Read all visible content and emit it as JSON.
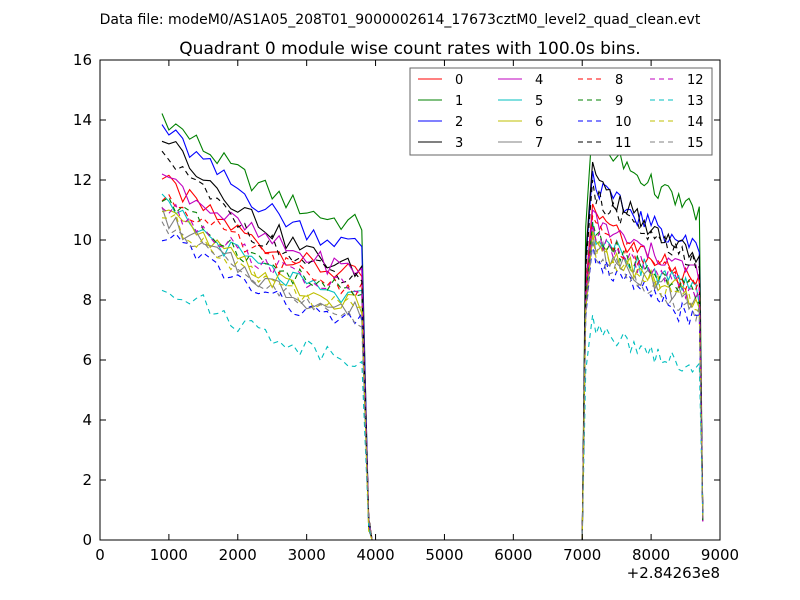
{
  "chart_data": {
    "type": "line",
    "suptitle": "Data file: modeM0/AS1A05_208T01_9000002614_17673cztM0_level2_quad_clean.evt",
    "title": "Quadrant 0 module wise count rates with 100.0s bins.",
    "xlabel": "",
    "ylabel": "",
    "x_offset_label": "+2.84263e8",
    "xlim": [
      0,
      9000
    ],
    "ylim": [
      0,
      16
    ],
    "x_ticks": [
      0,
      1000,
      2000,
      3000,
      4000,
      5000,
      6000,
      7000,
      8000,
      9000
    ],
    "y_ticks": [
      0,
      2,
      4,
      6,
      8,
      10,
      12,
      14,
      16
    ],
    "legend_position": "top-right",
    "legend_columns": 4,
    "segments": [
      {
        "start": 900,
        "end": 3850,
        "step": 100,
        "edge": 3900,
        "edge2": 3950
      },
      {
        "start": 7050,
        "end": 8700,
        "step": 50,
        "edge": 7000,
        "edge2": 8750
      }
    ],
    "series": [
      {
        "name": "0",
        "color": "#ff0000",
        "dash": "solid",
        "start1": 12.0,
        "end1": 8.8,
        "start2": 11.2,
        "end2": 8.6
      },
      {
        "name": "1",
        "color": "#008000",
        "dash": "solid",
        "start1": 14.2,
        "end1": 10.5,
        "start2": 13.9,
        "end2": 10.9
      },
      {
        "name": "2",
        "color": "#0000ff",
        "dash": "solid",
        "start1": 13.8,
        "end1": 9.8,
        "start2": 12.3,
        "end2": 9.7
      },
      {
        "name": "3",
        "color": "#000000",
        "dash": "solid",
        "start1": 13.6,
        "end1": 9.0,
        "start2": 12.6,
        "end2": 9.4
      },
      {
        "name": "4",
        "color": "#bf00bf",
        "dash": "solid",
        "start1": 12.2,
        "end1": 9.0,
        "start2": 11.0,
        "end2": 8.9
      },
      {
        "name": "5",
        "color": "#00bfbf",
        "dash": "solid",
        "start1": 11.2,
        "end1": 8.0,
        "start2": 10.6,
        "end2": 8.2
      },
      {
        "name": "6",
        "color": "#bfbf00",
        "dash": "solid",
        "start1": 11.0,
        "end1": 7.8,
        "start2": 10.3,
        "end2": 8.0
      },
      {
        "name": "7",
        "color": "#808080",
        "dash": "solid",
        "start1": 10.8,
        "end1": 7.6,
        "start2": 10.2,
        "end2": 7.9
      },
      {
        "name": "8",
        "color": "#ff0000",
        "dash": "dashed",
        "start1": 11.6,
        "end1": 8.4,
        "start2": 10.8,
        "end2": 8.4
      },
      {
        "name": "9",
        "color": "#008000",
        "dash": "dashed",
        "start1": 11.4,
        "end1": 8.2,
        "start2": 10.6,
        "end2": 8.2
      },
      {
        "name": "10",
        "color": "#0000ff",
        "dash": "dashed",
        "start1": 10.3,
        "end1": 7.2,
        "start2": 9.9,
        "end2": 7.3
      },
      {
        "name": "11",
        "color": "#000000",
        "dash": "dashed",
        "start1": 12.9,
        "end1": 8.6,
        "start2": 12.0,
        "end2": 9.2
      },
      {
        "name": "12",
        "color": "#bf00bf",
        "dash": "dashed",
        "start1": 11.3,
        "end1": 8.3,
        "start2": 10.5,
        "end2": 8.2
      },
      {
        "name": "13",
        "color": "#00bfbf",
        "dash": "dashed",
        "start1": 8.6,
        "end1": 6.1,
        "start2": 7.5,
        "end2": 5.7
      },
      {
        "name": "14",
        "color": "#bfbf00",
        "dash": "dashed",
        "start1": 10.9,
        "end1": 7.7,
        "start2": 10.2,
        "end2": 7.8
      },
      {
        "name": "15",
        "color": "#808080",
        "dash": "dashed",
        "start1": 10.6,
        "end1": 7.4,
        "start2": 10.0,
        "end2": 7.6
      }
    ]
  }
}
